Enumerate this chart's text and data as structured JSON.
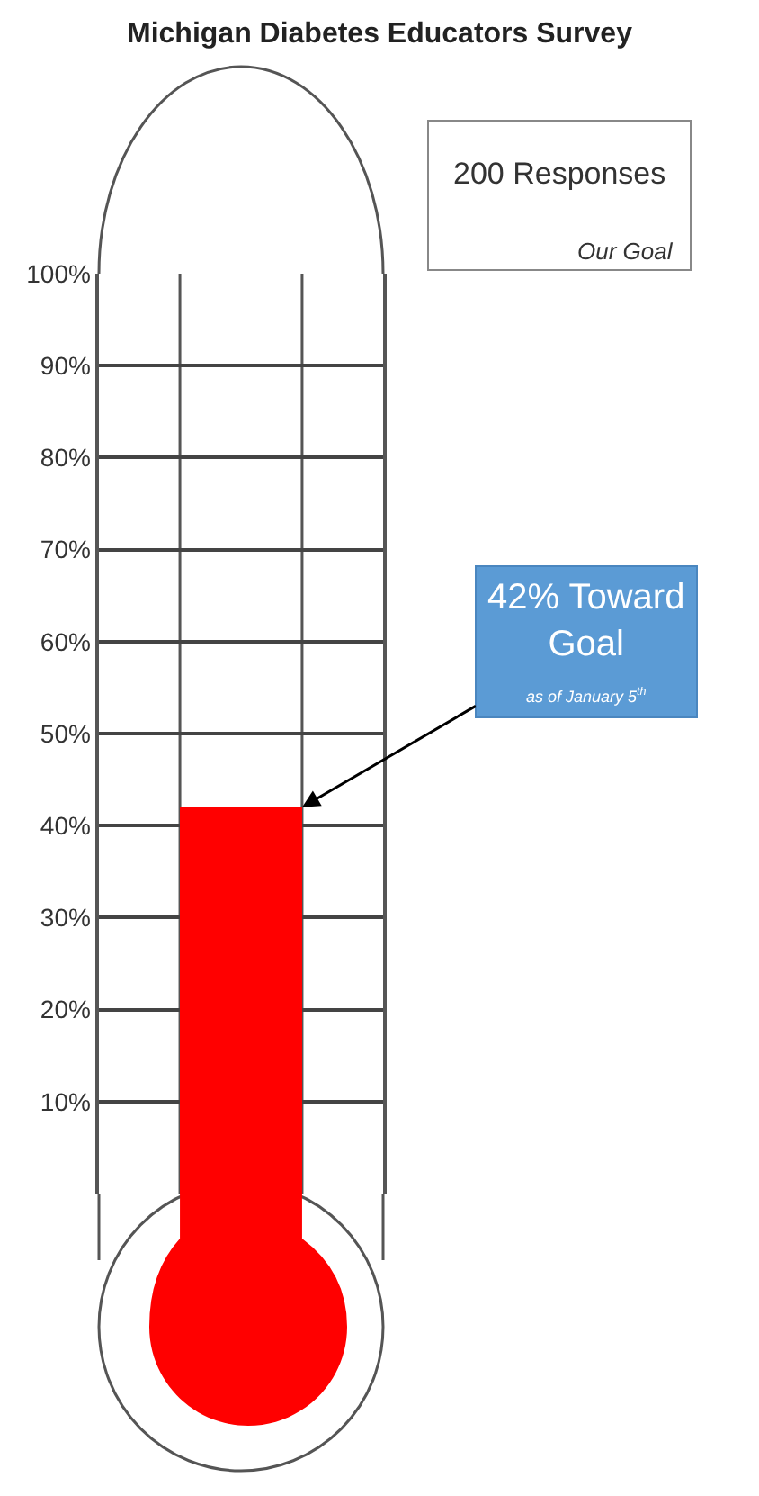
{
  "chart_data": {
    "type": "bar",
    "title": "Michigan Diabetes Educators Survey",
    "categories": [
      null
    ],
    "values": [
      42
    ],
    "color": "#ff0000",
    "ylim": [
      0,
      100
    ],
    "yticks": [
      {
        "value": 10,
        "label": "10%"
      },
      {
        "value": 20,
        "label": "20%"
      },
      {
        "value": 30,
        "label": "30%"
      },
      {
        "value": 40,
        "label": "40%"
      },
      {
        "value": 50,
        "label": "50%"
      },
      {
        "value": 60,
        "label": "60%"
      },
      {
        "value": 70,
        "label": "70%"
      },
      {
        "value": 80,
        "label": "80%"
      },
      {
        "value": 90,
        "label": "90%"
      },
      {
        "value": 100,
        "label": "100%"
      }
    ],
    "grid": "y",
    "tick_labels": "y",
    "annotations": [
      "200 Responses",
      "Our Goal",
      "42% Toward Goal",
      "as of January 5$^{th}$"
    ]
  }
}
